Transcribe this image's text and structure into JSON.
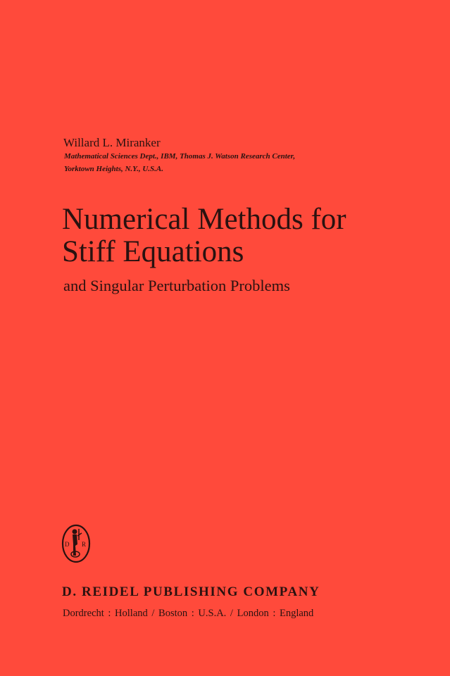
{
  "cover": {
    "background_color": "#ff4a3b",
    "text_color": "#2a1210",
    "author": "Willard L. Miranker",
    "affiliation_line1": "Mathematical Sciences Dept., IBM, Thomas J. Watson Research Center,",
    "affiliation_line2": "Yorktown Heights, N.Y., U.S.A.",
    "title_line1": "Numerical Methods for",
    "title_line2": "Stiff Equations",
    "subtitle": "and Singular Perturbation Problems",
    "logo": {
      "icon": "publisher-emblem-icon",
      "letters": "D R"
    },
    "publisher": "D. REIDEL PUBLISHING COMPANY",
    "cities": "Dordrecht : Holland / Boston : U.S.A. / London : England"
  }
}
